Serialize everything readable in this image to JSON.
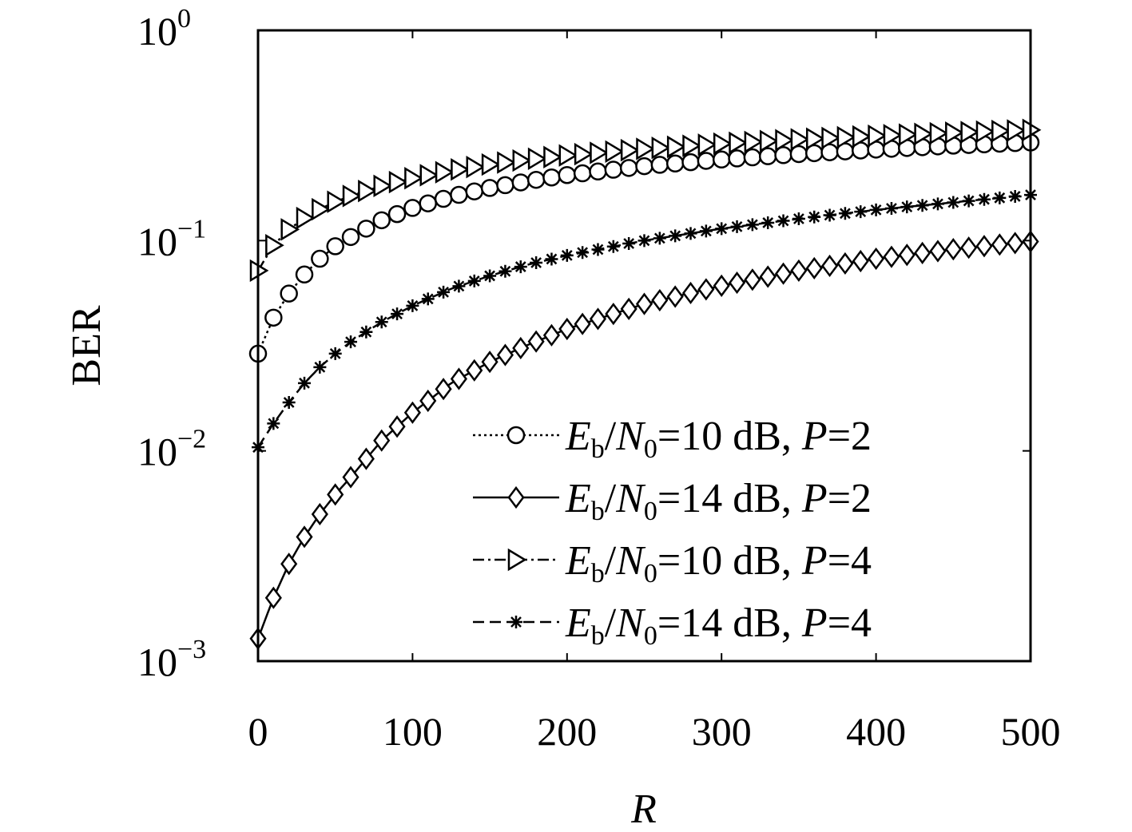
{
  "chart_data": {
    "type": "line",
    "title": "",
    "xlabel": "R",
    "ylabel": "BER",
    "xlim": [
      0,
      500
    ],
    "ylim": [
      0.001,
      1
    ],
    "yscale": "log",
    "grid": false,
    "legend_position": "bottom-right",
    "marker_spacing": 10,
    "x_ticks": [
      "0",
      "100",
      "200",
      "300",
      "400",
      "500"
    ],
    "x_tick_values": [
      0,
      100,
      200,
      300,
      400,
      500
    ],
    "y_ticks": [
      {
        "base": "10",
        "exp": "0",
        "value": 1
      },
      {
        "base": "10",
        "exp": "−1",
        "value": 0.1
      },
      {
        "base": "10",
        "exp": "−2",
        "value": 0.01
      },
      {
        "base": "10",
        "exp": "−3",
        "value": 0.001
      }
    ],
    "x": [
      0,
      10,
      20,
      30,
      40,
      50,
      60,
      80,
      100,
      125,
      150,
      175,
      200,
      250,
      300,
      350,
      400,
      450,
      500
    ],
    "series": [
      {
        "name": "E_b/N_0=10 dB, P=2",
        "marker": "circle",
        "line": "dotted",
        "values": [
          0.029,
          0.043,
          0.056,
          0.069,
          0.082,
          0.094,
          0.104,
          0.125,
          0.143,
          0.162,
          0.178,
          0.192,
          0.205,
          0.226,
          0.243,
          0.258,
          0.271,
          0.283,
          0.293
        ]
      },
      {
        "name": "E_b/N_0=14 dB, P=2",
        "marker": "diamond",
        "line": "solid",
        "values": [
          0.00128,
          0.002,
          0.0029,
          0.0039,
          0.005,
          0.0062,
          0.0075,
          0.0112,
          0.0152,
          0.021,
          0.0265,
          0.032,
          0.038,
          0.05,
          0.061,
          0.072,
          0.082,
          0.091,
          0.099
        ]
      },
      {
        "name": "E_b/N_0=10 dB, P=4",
        "marker": "triangle-right",
        "line": "dashdot",
        "values": [
          0.072,
          0.095,
          0.113,
          0.128,
          0.141,
          0.153,
          0.163,
          0.182,
          0.198,
          0.215,
          0.23,
          0.243,
          0.254,
          0.273,
          0.289,
          0.303,
          0.315,
          0.326,
          0.336
        ]
      },
      {
        "name": "E_b/N_0=14 dB, P=4",
        "marker": "star",
        "line": "dashed",
        "values": [
          0.0104,
          0.0135,
          0.017,
          0.021,
          0.025,
          0.029,
          0.033,
          0.041,
          0.049,
          0.059,
          0.068,
          0.077,
          0.085,
          0.1,
          0.114,
          0.127,
          0.14,
          0.152,
          0.165
        ]
      }
    ]
  }
}
